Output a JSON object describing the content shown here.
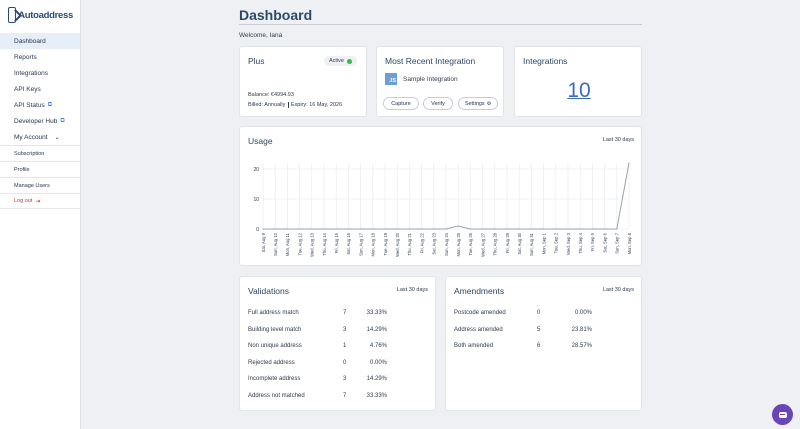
{
  "logo": {
    "text": "Autoaddress"
  },
  "sidebar": {
    "items": [
      {
        "label": "Dashboard",
        "active": true
      },
      {
        "label": "Reports"
      },
      {
        "label": "Integrations"
      },
      {
        "label": "API Keys"
      },
      {
        "label": "API Status",
        "external": true
      },
      {
        "label": "Developer Hub",
        "external": true
      },
      {
        "label": "My Account",
        "expandable": true
      }
    ],
    "sub_items": [
      "Subscription",
      "Profile",
      "Manage Users"
    ],
    "logout": "Log out"
  },
  "header": {
    "title": "Dashboard",
    "welcome": "Welcome, Iana"
  },
  "plan": {
    "title": "Plus",
    "status": "Active",
    "balance": "Balance: €4994.93",
    "billed_label": "Billed:",
    "billed_value": "Annually",
    "expiry_label": "Expiry:",
    "expiry_value": "16 May, 2026"
  },
  "recent_integration": {
    "title": "Most Recent Integration",
    "icon_text": "JS",
    "name": "Sample Integration",
    "buttons": [
      "Capture",
      "Verify",
      "Settings"
    ]
  },
  "integrations": {
    "title": "Integrations",
    "count": "10"
  },
  "usage": {
    "title": "Usage",
    "period": "Last 30 days"
  },
  "chart_data": {
    "type": "line",
    "title": "Usage",
    "x": [
      "Sat, Aug 9",
      "Sun, Aug 10",
      "Mon, Aug 11",
      "Tue, Aug 12",
      "Wed, Aug 13",
      "Thu, Aug 14",
      "Fri, Aug 15",
      "Sat, Aug 16",
      "Sun, Aug 17",
      "Mon, Aug 18",
      "Tue, Aug 19",
      "Wed, Aug 20",
      "Thu, Aug 21",
      "Fri, Aug 22",
      "Sat, Aug 23",
      "Sun, Aug 24",
      "Mon, Aug 25",
      "Tue, Aug 26",
      "Wed, Aug 27",
      "Thu, Aug 28",
      "Fri, Aug 29",
      "Sat, Aug 30",
      "Sun, Aug 31",
      "Mon, Sep 1",
      "Tue, Sep 2",
      "Wed, Sep 3",
      "Thu, Sep 4",
      "Fri, Sep 5",
      "Sat, Sep 6",
      "Sun, Sep 7",
      "Mon, Sep 8"
    ],
    "values": [
      0,
      0,
      0,
      0,
      0,
      0,
      0,
      0,
      0,
      0,
      0,
      0,
      0,
      0,
      0,
      0,
      1,
      0,
      0,
      0,
      0,
      0,
      0,
      0,
      0,
      0,
      0,
      0,
      0,
      0,
      22
    ],
    "yticks": [
      "0",
      "10",
      "20"
    ],
    "ylim": [
      0,
      22
    ],
    "grid": true,
    "line_color": "#9aa3ad"
  },
  "validations": {
    "title": "Validations",
    "period": "Last 30 days",
    "rows": [
      {
        "label": "Full address match",
        "count": "7",
        "pct": "33.33%"
      },
      {
        "label": "Building level match",
        "count": "3",
        "pct": "14.29%"
      },
      {
        "label": "Non unique address",
        "count": "1",
        "pct": "4.76%"
      },
      {
        "label": "Rejected address",
        "count": "0",
        "pct": "0.00%"
      },
      {
        "label": "Incomplete address",
        "count": "3",
        "pct": "14.29%"
      },
      {
        "label": "Address not matched",
        "count": "7",
        "pct": "33.33%"
      }
    ]
  },
  "amendments": {
    "title": "Amendments",
    "period": "Last 30 days",
    "rows": [
      {
        "label": "Postcode amended",
        "count": "0",
        "pct": "0.00%"
      },
      {
        "label": "Address amended",
        "count": "5",
        "pct": "23.81%"
      },
      {
        "label": "Both amended",
        "count": "6",
        "pct": "28.57%"
      }
    ]
  }
}
